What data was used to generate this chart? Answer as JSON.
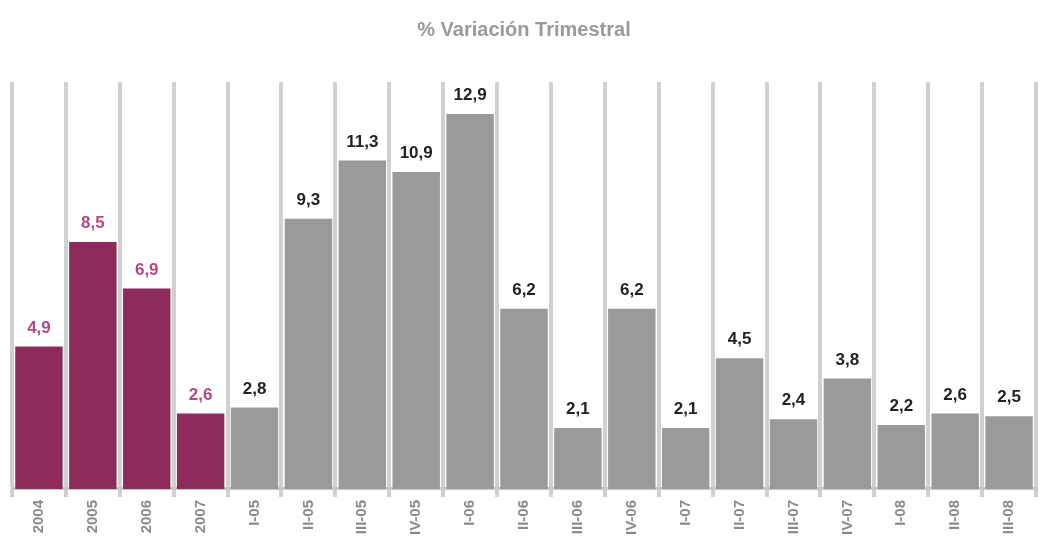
{
  "chart_data": {
    "type": "bar",
    "title": "% Variación Trimestral",
    "categories": [
      "2004",
      "2005",
      "2006",
      "2007",
      "I-05",
      "II-05",
      "III-05",
      "IV-05",
      "I-06",
      "II-06",
      "III-06",
      "IV-06",
      "I-07",
      "II-07",
      "III-07",
      "IV-07",
      "I-08",
      "II-08",
      "III-08"
    ],
    "values": [
      4.9,
      8.5,
      6.9,
      2.6,
      2.8,
      9.3,
      11.3,
      10.9,
      12.9,
      6.2,
      2.1,
      6.2,
      2.1,
      4.5,
      2.4,
      3.8,
      2.2,
      2.6,
      2.5
    ],
    "value_labels": [
      "4,9",
      "8,5",
      "6,9",
      "2,6",
      "2,8",
      "9,3",
      "11,3",
      "10,9",
      "12,9",
      "6,2",
      "2,1",
      "6,2",
      "2,1",
      "4,5",
      "2,4",
      "3,8",
      "2,2",
      "2,6",
      "2,5"
    ],
    "colors": [
      "#8e2a5c",
      "#8e2a5c",
      "#8e2a5c",
      "#8e2a5c",
      "#9a9a9a",
      "#9a9a9a",
      "#9a9a9a",
      "#9a9a9a",
      "#9a9a9a",
      "#9a9a9a",
      "#9a9a9a",
      "#9a9a9a",
      "#9a9a9a",
      "#9a9a9a",
      "#9a9a9a",
      "#9a9a9a",
      "#9a9a9a",
      "#9a9a9a",
      "#9a9a9a"
    ],
    "grid": "x"
  }
}
